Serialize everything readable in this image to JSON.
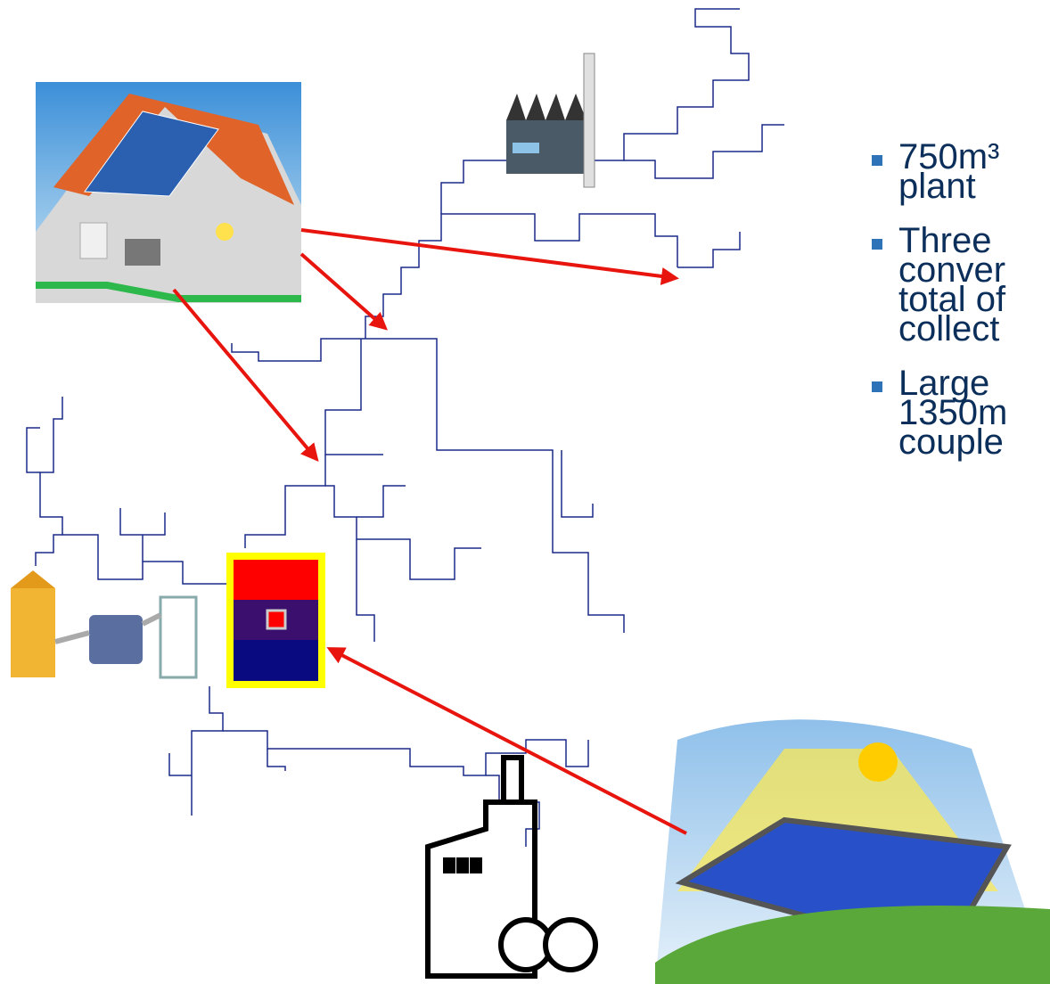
{
  "bullets": [
    {
      "lines": [
        "750m³",
        "plant"
      ]
    },
    {
      "lines": [
        "Three",
        "conver",
        "total of",
        "collect"
      ]
    },
    {
      "lines": [
        "Large",
        "1350m",
        "couple"
      ]
    }
  ]
}
